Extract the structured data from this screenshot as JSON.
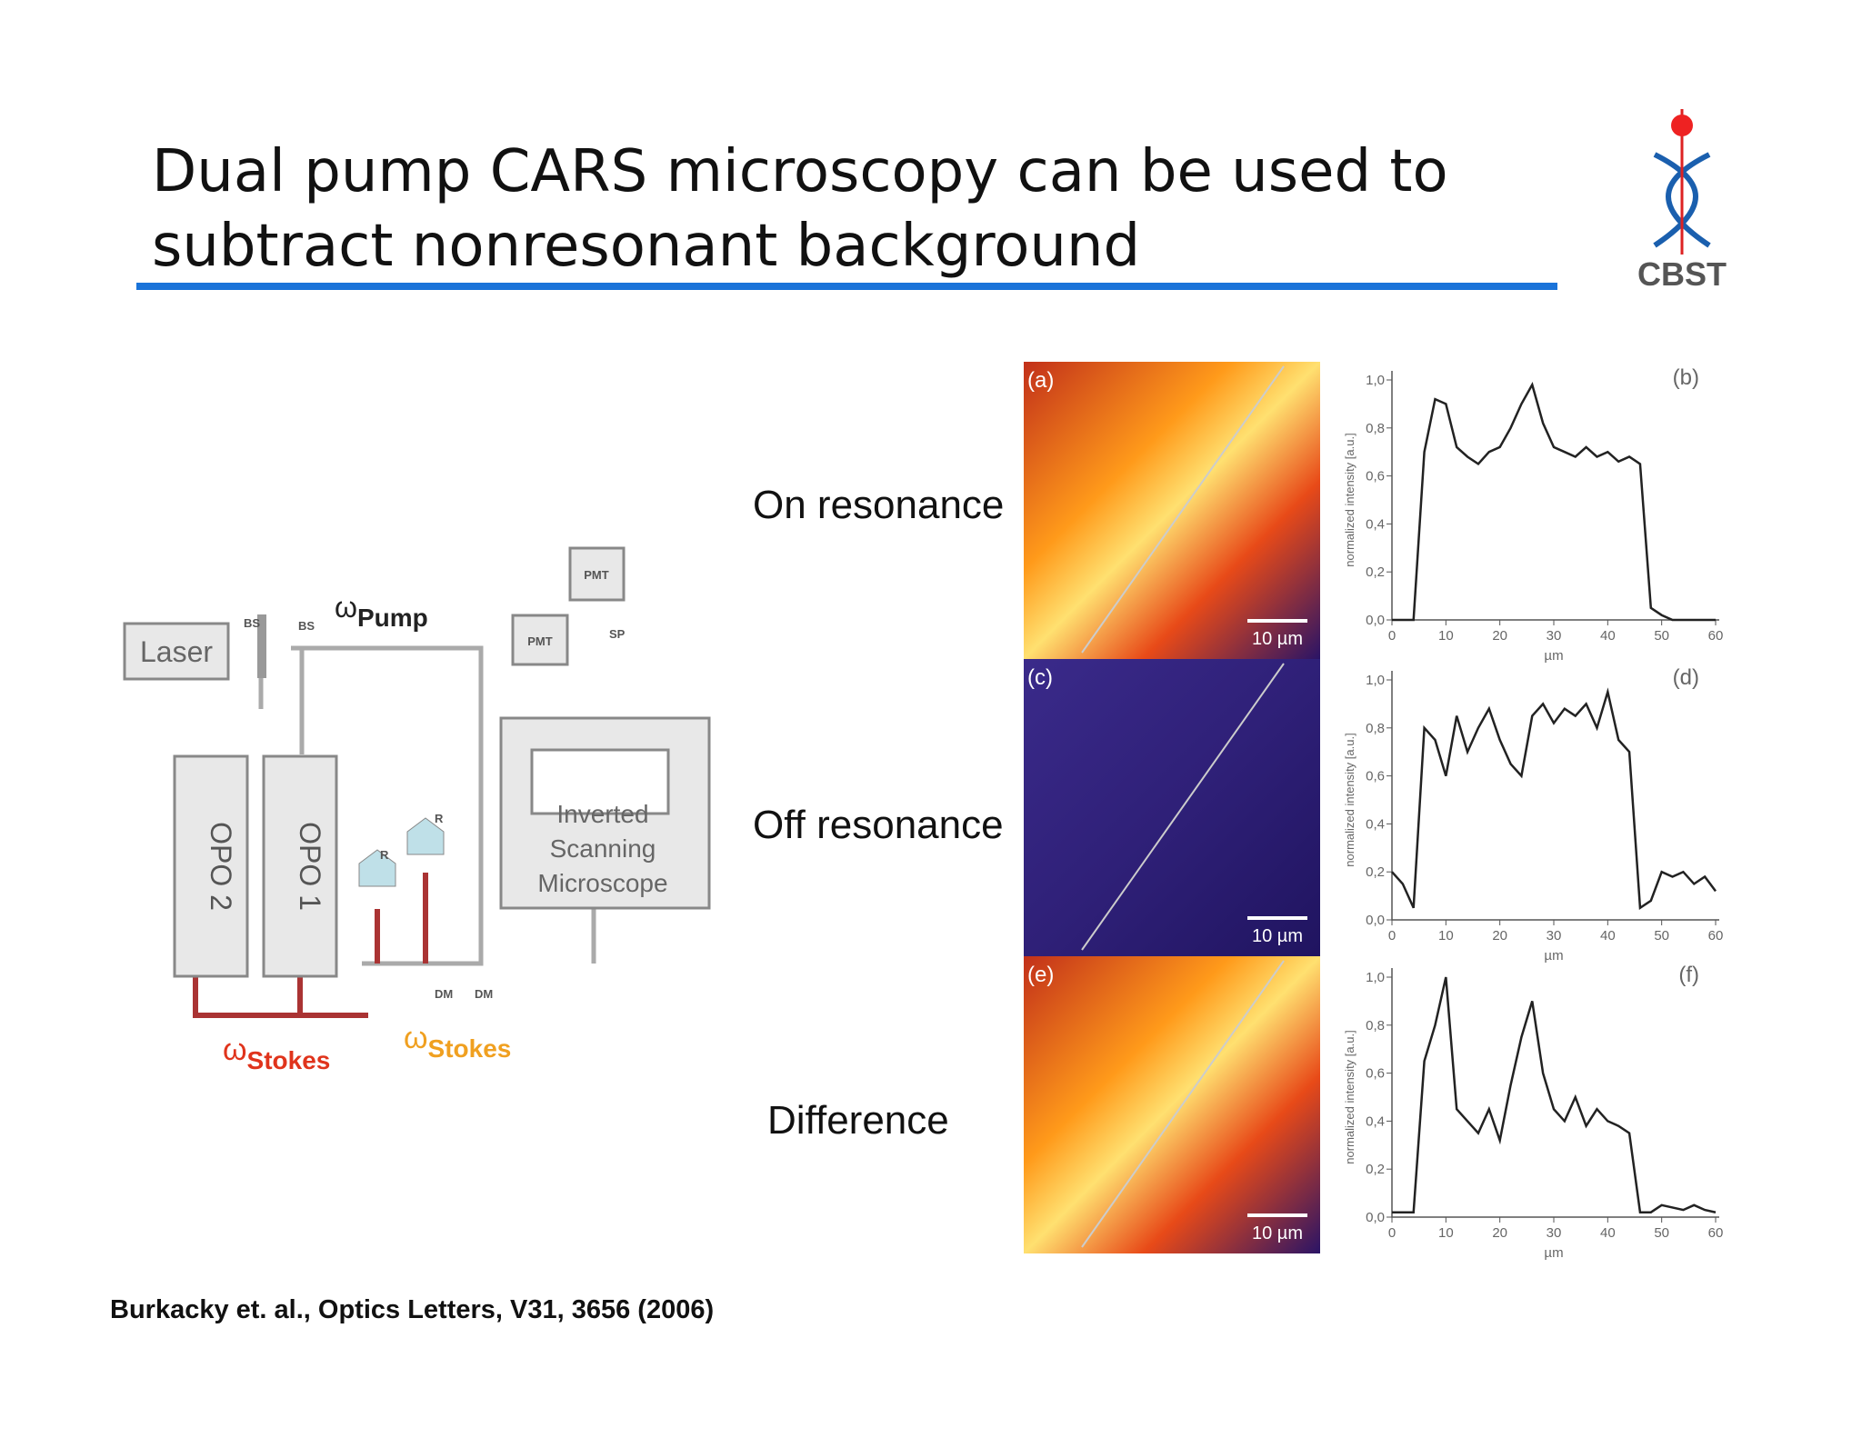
{
  "header": {
    "title_lines": [
      "Dual pump CARS microscopy can be used to",
      "subtract nonresonant background"
    ],
    "logo": "CBST"
  },
  "diagram": {
    "laser": "Laser",
    "beamsplitters": [
      "BS",
      "BS"
    ],
    "opos": [
      "OPO 2",
      "OPO 1"
    ],
    "pmts": [
      "PMT",
      "PMT"
    ],
    "filter": "SP",
    "microscope_lines": [
      "Inverted",
      "Scanning",
      "Microscope"
    ],
    "retroreflectors": [
      "R",
      "R"
    ],
    "mirrors": [
      "DM",
      "DM"
    ],
    "pump": {
      "symbol": "ω",
      "sub": "Pump"
    },
    "stokes_1": {
      "symbol": "ω",
      "sub": "Stokes"
    },
    "stokes_2": {
      "symbol": "ω",
      "sub": "Stokes"
    }
  },
  "figure": {
    "row_labels": [
      "On resonance",
      "Off resonance",
      "Difference"
    ],
    "panels": [
      {
        "label": "(a)",
        "scale": "10 µm"
      },
      {
        "label": "(c)",
        "scale": "10 µm"
      },
      {
        "label": "(e)",
        "scale": "10 µm"
      }
    ],
    "plots": [
      {
        "type": "line",
        "label": "(b)",
        "xlabel": "µm",
        "ylabel": "normalized intensity [a.u.]",
        "x": [
          0,
          2,
          4,
          6,
          8,
          10,
          12,
          14,
          16,
          18,
          20,
          22,
          24,
          26,
          28,
          30,
          32,
          34,
          36,
          38,
          40,
          42,
          44,
          46,
          48,
          50,
          52,
          54,
          56,
          58,
          60
        ],
        "values": [
          0,
          0,
          0,
          0.7,
          0.92,
          0.9,
          0.72,
          0.68,
          0.65,
          0.7,
          0.72,
          0.8,
          0.9,
          0.98,
          0.82,
          0.72,
          0.7,
          0.68,
          0.72,
          0.68,
          0.7,
          0.66,
          0.68,
          0.65,
          0.05,
          0.02,
          0,
          0,
          0,
          0,
          0
        ],
        "xlim": [
          0,
          60
        ],
        "ylim": [
          0,
          1
        ],
        "xticks": [
          0,
          10,
          20,
          30,
          40,
          50,
          60
        ],
        "yticks": [
          {
            "value": 0,
            "label": "0,0"
          },
          {
            "value": 0.2,
            "label": "0,2"
          },
          {
            "value": 0.4,
            "label": "0,4"
          },
          {
            "value": 0.6,
            "label": "0,6"
          },
          {
            "value": 0.8,
            "label": "0,8"
          },
          {
            "value": 1,
            "label": "1,0"
          }
        ]
      },
      {
        "type": "line",
        "label": "(d)",
        "xlabel": "µm",
        "ylabel": "normalized intensity [a.u.]",
        "x": [
          0,
          2,
          4,
          6,
          8,
          10,
          12,
          14,
          16,
          18,
          20,
          22,
          24,
          26,
          28,
          30,
          32,
          34,
          36,
          38,
          40,
          42,
          44,
          46,
          48,
          50,
          52,
          54,
          56,
          58,
          60
        ],
        "values": [
          0.2,
          0.15,
          0.05,
          0.8,
          0.75,
          0.6,
          0.85,
          0.7,
          0.8,
          0.88,
          0.75,
          0.65,
          0.6,
          0.85,
          0.9,
          0.82,
          0.88,
          0.85,
          0.9,
          0.8,
          0.95,
          0.75,
          0.7,
          0.05,
          0.08,
          0.2,
          0.18,
          0.2,
          0.15,
          0.18,
          0.12
        ],
        "xlim": [
          0,
          60
        ],
        "ylim": [
          0,
          1
        ],
        "xticks": [
          0,
          10,
          20,
          30,
          40,
          50,
          60
        ],
        "yticks": [
          {
            "value": 0,
            "label": "0,0"
          },
          {
            "value": 0.2,
            "label": "0,2"
          },
          {
            "value": 0.4,
            "label": "0,4"
          },
          {
            "value": 0.6,
            "label": "0,6"
          },
          {
            "value": 0.8,
            "label": "0,8"
          },
          {
            "value": 1,
            "label": "1,0"
          }
        ]
      },
      {
        "type": "line",
        "label": "(f)",
        "xlabel": "µm",
        "ylabel": "normalized intensity [a.u.]",
        "x": [
          0,
          2,
          4,
          6,
          8,
          10,
          12,
          14,
          16,
          18,
          20,
          22,
          24,
          26,
          28,
          30,
          32,
          34,
          36,
          38,
          40,
          42,
          44,
          46,
          48,
          50,
          52,
          54,
          56,
          58,
          60
        ],
        "values": [
          0.02,
          0.02,
          0.02,
          0.65,
          0.8,
          1.0,
          0.45,
          0.4,
          0.35,
          0.45,
          0.32,
          0.55,
          0.75,
          0.9,
          0.6,
          0.45,
          0.4,
          0.5,
          0.38,
          0.45,
          0.4,
          0.38,
          0.35,
          0.02,
          0.02,
          0.05,
          0.04,
          0.03,
          0.05,
          0.03,
          0.02
        ],
        "xlim": [
          0,
          60
        ],
        "ylim": [
          0,
          1
        ],
        "xticks": [
          0,
          10,
          20,
          30,
          40,
          50,
          60
        ],
        "yticks": [
          {
            "value": 0,
            "label": "0,0"
          },
          {
            "value": 0.2,
            "label": "0,2"
          },
          {
            "value": 0.4,
            "label": "0,4"
          },
          {
            "value": 0.6,
            "label": "0,6"
          },
          {
            "value": 0.8,
            "label": "0,8"
          },
          {
            "value": 1,
            "label": "1,0"
          }
        ]
      }
    ]
  },
  "citation": "Burkacky et. al., Optics Letters,  V31, 3656 (2006)"
}
